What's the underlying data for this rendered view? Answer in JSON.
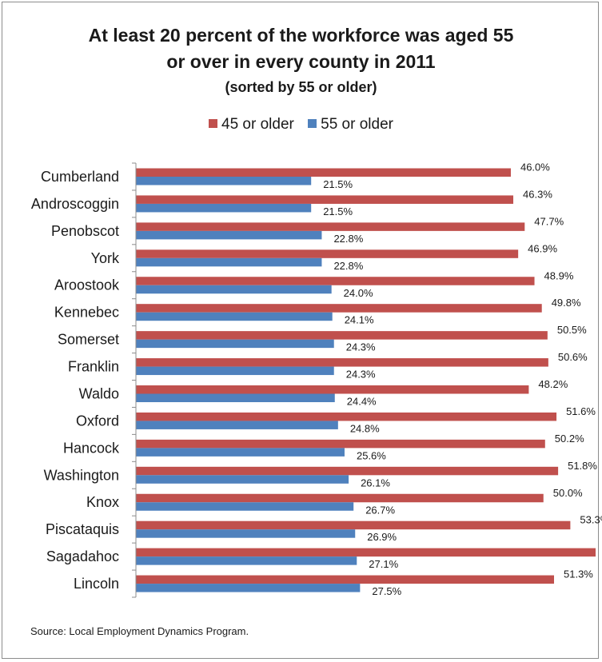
{
  "chart_data": {
    "type": "bar",
    "orientation": "horizontal",
    "title": "At least 20 percent of the workforce was aged 55 or over in every county in 2011",
    "title_line1": "At least 20 percent of the workforce was aged 55",
    "title_line2": "or over in every county in 2011",
    "subtitle": "(sorted by 55 or older)",
    "categories": [
      "Cumberland",
      "Androscoggin",
      "Penobscot",
      "York",
      "Aroostook",
      "Kennebec",
      "Somerset",
      "Franklin",
      "Waldo",
      "Oxford",
      "Hancock",
      "Washington",
      "Knox",
      "Piscataquis",
      "Sagadahoc",
      "Lincoln"
    ],
    "series": [
      {
        "name": "45 or older",
        "color": "#c0504d",
        "values": [
          46.0,
          46.3,
          47.7,
          46.9,
          48.9,
          49.8,
          50.5,
          50.6,
          48.2,
          51.6,
          50.2,
          51.8,
          50.0,
          53.3,
          56.4,
          51.3
        ]
      },
      {
        "name": "55 or older",
        "color": "#4f81bd",
        "values": [
          21.5,
          21.5,
          22.8,
          22.8,
          24.0,
          24.1,
          24.3,
          24.3,
          24.4,
          24.8,
          25.6,
          26.1,
          26.7,
          26.9,
          27.1,
          27.5
        ]
      }
    ],
    "value_suffix": "%",
    "xlim": [
      0,
      56.4
    ],
    "grid": false,
    "legend_position": "top"
  },
  "source": "Source: Local Employment Dynamics Program."
}
